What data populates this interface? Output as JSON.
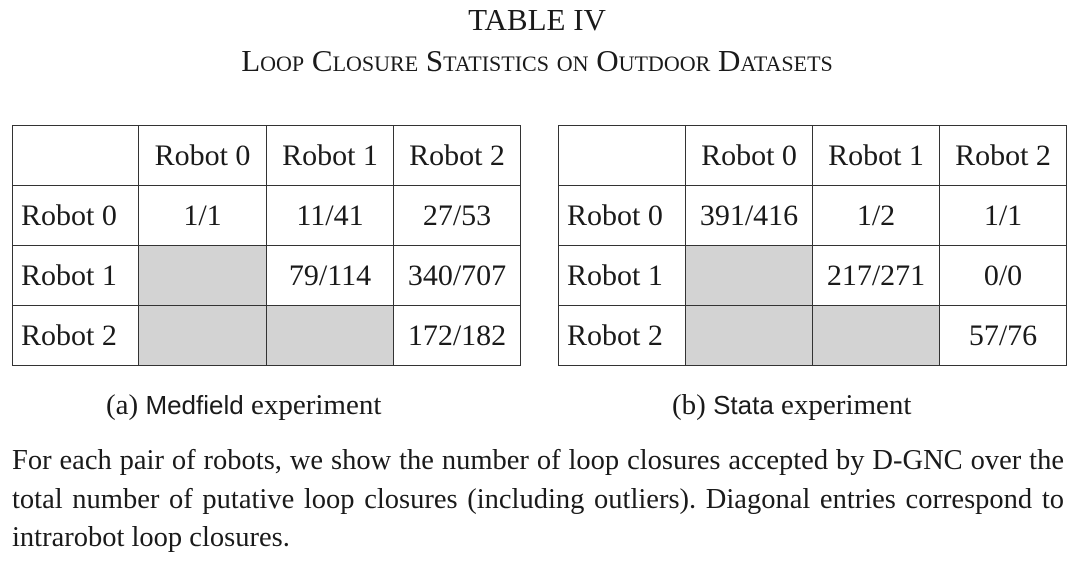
{
  "table_number": "TABLE IV",
  "table_title": "Loop Closure Statistics on Outdoor Datasets",
  "tables": [
    {
      "column_headers": [
        "",
        "Robot 0",
        "Robot 1",
        "Robot 2"
      ],
      "rows": [
        {
          "label": "Robot 0",
          "cells": [
            "1/1",
            "11/41",
            "27/53"
          ]
        },
        {
          "label": "Robot 1",
          "cells": [
            "",
            "79/114",
            "340/707"
          ]
        },
        {
          "label": "Robot 2",
          "cells": [
            "",
            "",
            "172/182"
          ]
        }
      ],
      "caption_prefix": "(a)",
      "caption_name": "Medfield",
      "caption_suffix": "experiment"
    },
    {
      "column_headers": [
        "",
        "Robot 0",
        "Robot 1",
        "Robot 2"
      ],
      "rows": [
        {
          "label": "Robot 0",
          "cells": [
            "391/416",
            "1/2",
            "1/1"
          ]
        },
        {
          "label": "Robot 1",
          "cells": [
            "",
            "217/271",
            "0/0"
          ]
        },
        {
          "label": "Robot 2",
          "cells": [
            "",
            "",
            "57/76"
          ]
        }
      ],
      "caption_prefix": "(b)",
      "caption_name": "Stata",
      "caption_suffix": "experiment"
    }
  ],
  "note": "For each pair of robots, we show the number of loop closures accepted by D-GNC over the total number of putative loop closures (including outliers). Diagonal entries correspond to intrarobot loop closures.",
  "colors": {
    "shaded_cell": "#d3d3d3",
    "border": "#333333",
    "text": "#1a1a1a"
  }
}
